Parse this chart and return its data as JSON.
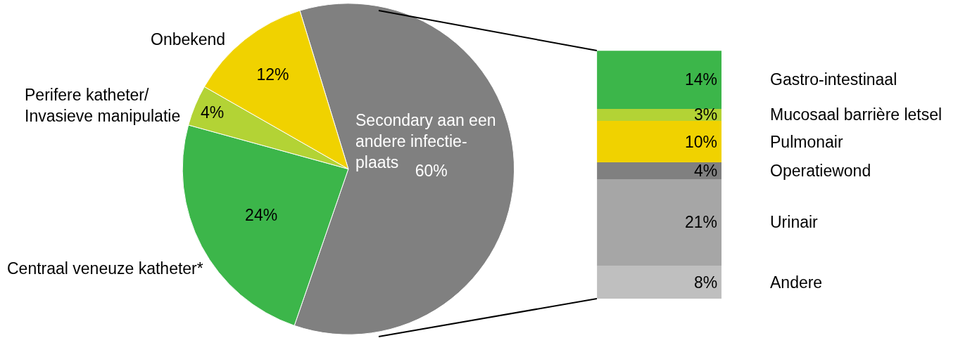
{
  "chart_data": [
    {
      "type": "pie",
      "categories": [
        "Secondary aan een andere infectie-plaats",
        "Centraal veneuze katheter*",
        "Perifere katheter/\nInvasieve manipulatie",
        "Onbekend"
      ],
      "values": [
        60,
        24,
        4,
        12
      ],
      "value_labels": [
        "60%",
        "24%",
        "4%",
        "12%"
      ],
      "colors": [
        "#808080",
        "#3cb64a",
        "#b3d335",
        "#f0d200"
      ],
      "legend": false
    },
    {
      "type": "bar",
      "stacked": true,
      "categories": [
        null
      ],
      "legend": false,
      "series": [
        {
          "name": "Andere",
          "color": "#bfbfbf",
          "values": [
            8
          ],
          "value_labels": [
            "8%"
          ]
        },
        {
          "name": "Urinair",
          "color": "#a6a6a6",
          "values": [
            21
          ],
          "value_labels": [
            "21%"
          ]
        },
        {
          "name": "Operatiewond",
          "color": "#808080",
          "values": [
            4
          ],
          "value_labels": [
            "4%"
          ]
        },
        {
          "name": "Pulmonair",
          "color": "#f0d200",
          "values": [
            10
          ],
          "value_labels": [
            "10%"
          ]
        },
        {
          "name": "Mucosaal barrière letsel",
          "color": "#b3d335",
          "values": [
            3
          ],
          "value_labels": [
            "3%"
          ]
        },
        {
          "name": "Gastro-intestinaal",
          "color": "#3cb64a",
          "values": [
            14
          ],
          "value_labels": [
            "14%"
          ]
        }
      ]
    }
  ]
}
